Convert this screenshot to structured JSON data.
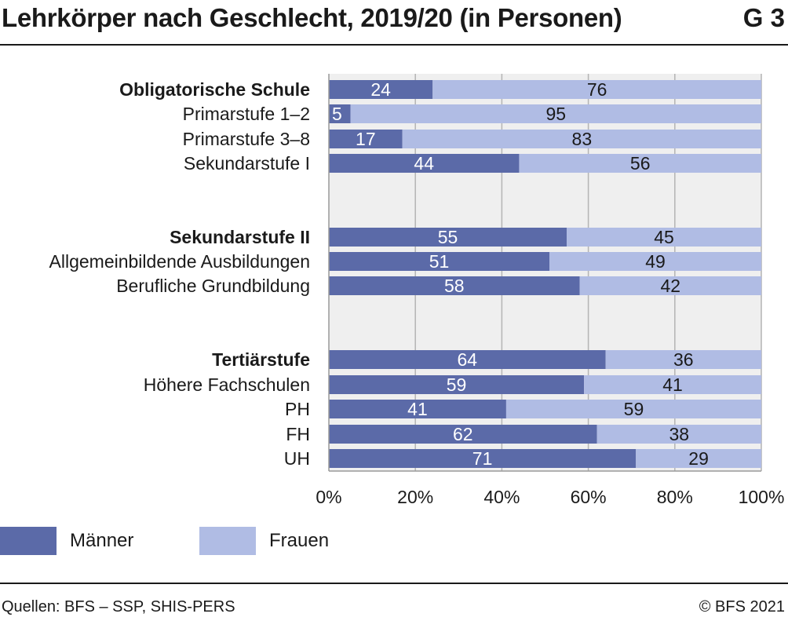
{
  "header": {
    "title": "Lehrkörper nach Geschlecht, 2019/20 (in Personen)",
    "code": "G 3"
  },
  "colors": {
    "maenner": "#5b6aa8",
    "frauen": "#b0bce4",
    "plot_bg": "#efefef",
    "grid": "#b4b4b4",
    "text": "#1a1a1a"
  },
  "chart_data": {
    "type": "bar",
    "orientation": "horizontal",
    "stacked": "percent",
    "categories": [
      "Obligatorische Schule",
      "Primarstufe 1–2",
      "Primarstufe 3–8",
      "Sekundarstufe I",
      "Sekundarstufe II",
      "Allgemeinbildende Ausbildungen",
      "Berufliche Grundbildung",
      "Tertiärstufe",
      "Höhere Fachschulen",
      "PH",
      "FH",
      "UH"
    ],
    "category_groups": [
      [
        "Obligatorische Schule",
        "Primarstufe 1–2",
        "Primarstufe 3–8",
        "Sekundarstufe I"
      ],
      [
        "Sekundarstufe II",
        "Allgemeinbildende Ausbildungen",
        "Berufliche Grundbildung"
      ],
      [
        "Tertiärstufe",
        "Höhere Fachschulen",
        "PH",
        "FH",
        "UH"
      ]
    ],
    "bold_categories": [
      "Obligatorische Schule",
      "Sekundarstufe II",
      "Tertiärstufe"
    ],
    "series": [
      {
        "name": "Männer",
        "values": [
          24,
          5,
          17,
          44,
          55,
          51,
          58,
          64,
          59,
          41,
          62,
          71
        ]
      },
      {
        "name": "Frauen",
        "values": [
          76,
          95,
          83,
          56,
          45,
          49,
          42,
          36,
          41,
          59,
          38,
          29
        ]
      }
    ],
    "xlim": [
      0,
      100
    ],
    "xticks": [
      "0%",
      "20%",
      "40%",
      "60%",
      "80%",
      "100%"
    ],
    "grid": true,
    "legend_position": "bottom-left",
    "title": "",
    "xlabel": "",
    "ylabel": ""
  },
  "footer": {
    "source": "Quellen: BFS – SSP, SHIS-PERS",
    "copyright": "© BFS 2021"
  }
}
